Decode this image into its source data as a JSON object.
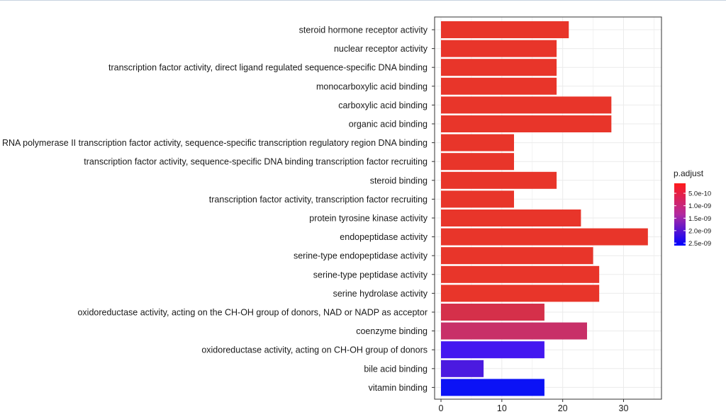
{
  "chart_data": {
    "type": "bar",
    "orientation": "horizontal",
    "title": "",
    "xlabel": "",
    "ylabel": "",
    "xlim": [
      0,
      36
    ],
    "xticks": [
      0,
      10,
      20,
      30
    ],
    "xtick_labels": [
      "0",
      "10",
      "20",
      "30"
    ],
    "grid": true,
    "categories": [
      "steroid hormone receptor activity",
      "nuclear receptor activity",
      "transcription factor activity, direct ligand regulated sequence-specific DNA binding",
      "monocarboxylic acid binding",
      "carboxylic acid binding",
      "organic acid binding",
      "RNA polymerase II transcription factor activity, sequence-specific transcription regulatory region DNA binding",
      "transcription factor activity, sequence-specific DNA binding transcription factor recruiting",
      "steroid binding",
      "transcription factor activity, transcription factor recruiting",
      "protein tyrosine kinase activity",
      "endopeptidase activity",
      "serine-type endopeptidase activity",
      "serine-type peptidase activity",
      "serine hydrolase activity",
      "oxidoreductase activity, acting on the CH-OH group of donors, NAD or NADP as acceptor",
      "coenzyme binding",
      "oxidoreductase activity, acting on CH-OH group of donors",
      "bile acid binding",
      "vitamin binding"
    ],
    "values": [
      21,
      19,
      19,
      19,
      28,
      28,
      12,
      12,
      19,
      12,
      23,
      34,
      25,
      26,
      26,
      17,
      24,
      17,
      7,
      17
    ],
    "p_adjust": [
      1e-10,
      1e-10,
      1e-10,
      1e-10,
      1e-10,
      1e-10,
      1e-10,
      1e-10,
      1e-10,
      1e-10,
      1e-10,
      1e-10,
      1e-10,
      1e-10,
      1e-10,
      6e-10,
      8.5e-10,
      2.2e-09,
      2.1e-09,
      2.6e-09
    ],
    "colors": [
      "#e8352a",
      "#e8352a",
      "#e8352a",
      "#e8352a",
      "#e8352a",
      "#e8352a",
      "#e8352a",
      "#e8352a",
      "#e8352a",
      "#e8352a",
      "#e8352a",
      "#e8352a",
      "#e8352a",
      "#e8352a",
      "#e8352a",
      "#d5304a",
      "#c83068",
      "#4417f0",
      "#4b1ae0",
      "#0b12f6"
    ],
    "legend": {
      "title": "p.adjust",
      "position": "right",
      "low_color": "#ff1a1a",
      "high_color": "#0000ff",
      "range": [
        1e-10,
        2.6e-09
      ],
      "tick_values": [
        5e-10,
        1e-09,
        1.5e-09,
        2e-09,
        2.5e-09
      ],
      "tick_labels": [
        "5.0e-10",
        "1.0e-09",
        "1.5e-09",
        "2.0e-09",
        "2.5e-09"
      ]
    },
    "colors_ui": {
      "panel_border": "#333333",
      "grid": "#ebebeb",
      "top_rule": "#c7d3e0"
    }
  }
}
